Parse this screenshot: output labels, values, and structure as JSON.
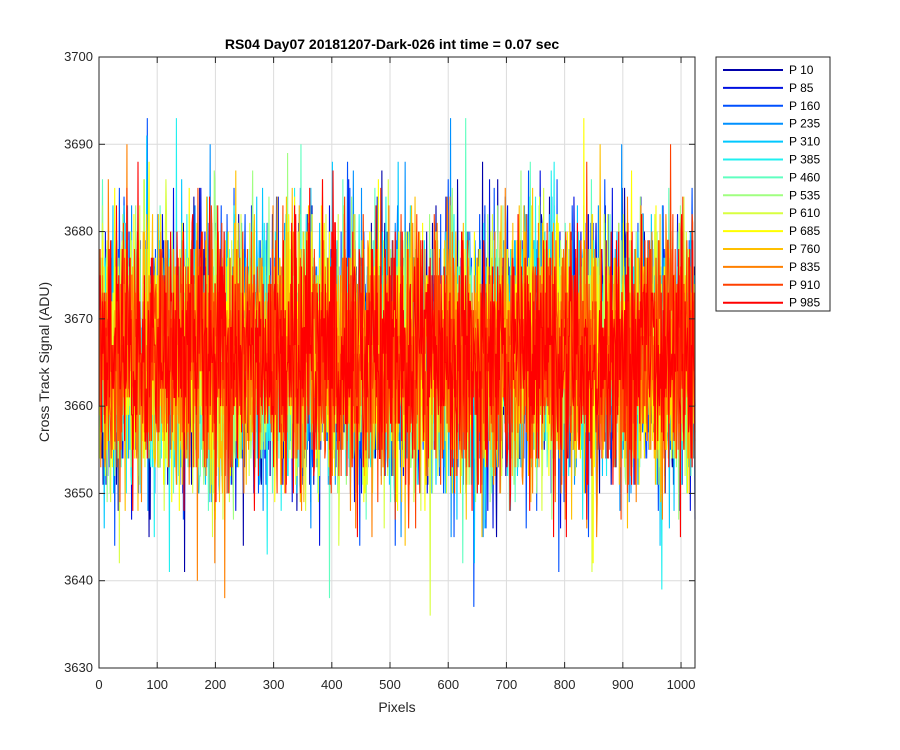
{
  "chart_data": {
    "type": "line",
    "title": "RS04 Day07 20181207-Dark-026 int time = 0.07 sec",
    "xlabel": "Pixels",
    "ylabel": "Cross Track Signal (ADU)",
    "xlim": [
      0,
      1024
    ],
    "ylim": [
      3630,
      3700
    ],
    "xticks": [
      0,
      100,
      200,
      300,
      400,
      500,
      600,
      700,
      800,
      900,
      1000
    ],
    "yticks": [
      3630,
      3640,
      3650,
      3660,
      3670,
      3680,
      3690,
      3700
    ],
    "xtick_labels": [
      "0",
      "100",
      "200",
      "300",
      "400",
      "500",
      "600",
      "700",
      "800",
      "900",
      "1000"
    ],
    "ytick_labels": [
      "3630",
      "3640",
      "3650",
      "3660",
      "3670",
      "3680",
      "3690",
      "3700"
    ],
    "grid": true,
    "legend_position": "outside-right",
    "num_points": 1024,
    "noise_model": {
      "center": 3666,
      "typical_range": [
        3650,
        3682
      ],
      "extreme_range": [
        3634,
        3693
      ]
    },
    "series": [
      {
        "name": "P 10",
        "color": "#0000aa"
      },
      {
        "name": "P 85",
        "color": "#0010e0"
      },
      {
        "name": "P 160",
        "color": "#0050ff"
      },
      {
        "name": "P 235",
        "color": "#0090ff"
      },
      {
        "name": "P 310",
        "color": "#00c8ff"
      },
      {
        "name": "P 385",
        "color": "#20f0f0"
      },
      {
        "name": "P 460",
        "color": "#60ffc0"
      },
      {
        "name": "P 535",
        "color": "#a0ff80"
      },
      {
        "name": "P 610",
        "color": "#d8ff40"
      },
      {
        "name": "P 685",
        "color": "#ffff00"
      },
      {
        "name": "P 760",
        "color": "#ffc000"
      },
      {
        "name": "P 835",
        "color": "#ff8000"
      },
      {
        "name": "P 910",
        "color": "#ff4000"
      },
      {
        "name": "P 985",
        "color": "#ff0000"
      }
    ]
  }
}
